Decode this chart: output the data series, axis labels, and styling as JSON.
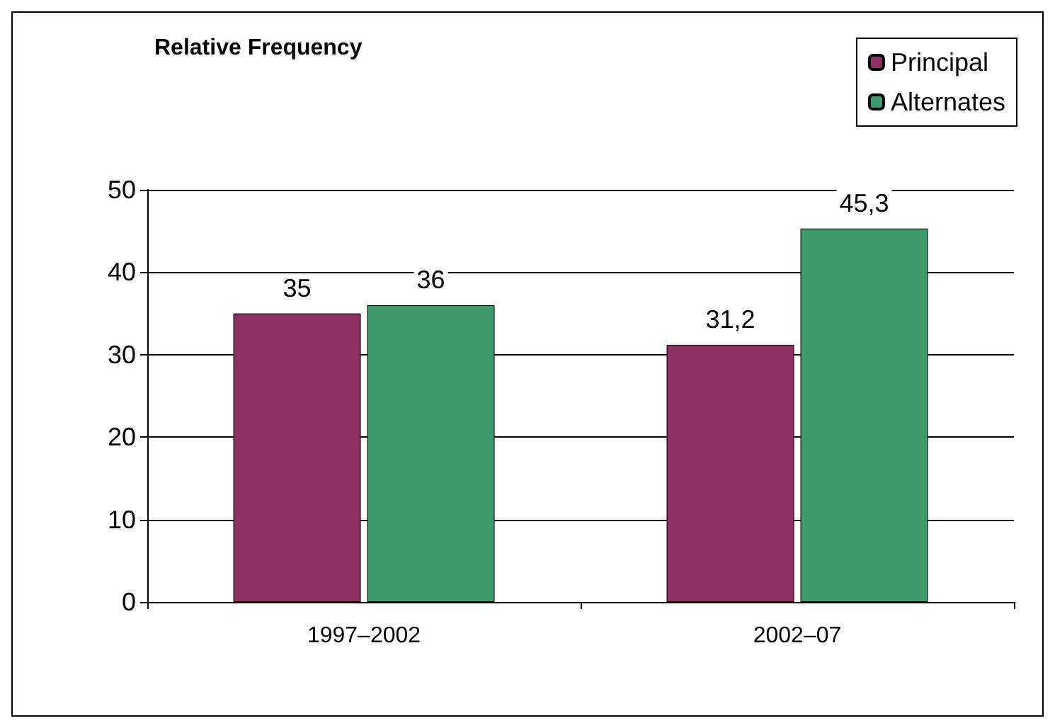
{
  "chart_data": {
    "type": "bar",
    "title": "Relative Frequency",
    "categories": [
      "1997–2002",
      "2002–07"
    ],
    "series": [
      {
        "name": "Principal",
        "color": "#8e2f62",
        "values": [
          35,
          31.2
        ],
        "value_labels": [
          "35",
          "31,2"
        ]
      },
      {
        "name": "Alternates",
        "color": "#3f9a6c",
        "values": [
          36,
          45.3
        ],
        "value_labels": [
          "36",
          "45,3"
        ]
      }
    ],
    "ylim": [
      0,
      50
    ],
    "yticks": [
      0,
      10,
      20,
      30,
      40,
      50
    ],
    "grid": "y",
    "legend": "top right"
  }
}
